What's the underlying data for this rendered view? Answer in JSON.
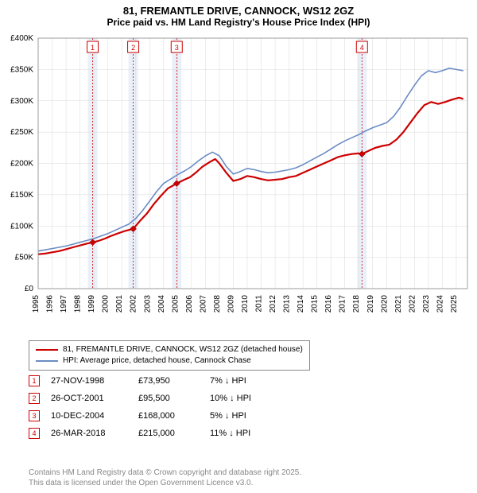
{
  "titles": {
    "line1": "81, FREMANTLE DRIVE, CANNOCK, WS12 2GZ",
    "line2": "Price paid vs. HM Land Registry's House Price Index (HPI)"
  },
  "chart": {
    "type": "line",
    "background_color": "#ffffff",
    "grid_color": "#d8d8d8",
    "grid_line_width": 0.5,
    "axis_color": "#000000",
    "xlim": [
      1995,
      2025.8
    ],
    "ylim": [
      0,
      400000
    ],
    "ytick_step": 50000,
    "ytick_labels": [
      "£0",
      "£50K",
      "£100K",
      "£150K",
      "£200K",
      "£250K",
      "£300K",
      "£350K",
      "£400K"
    ],
    "ytick_fontsize": 10,
    "xtick_years": [
      1995,
      1996,
      1997,
      1998,
      1999,
      2000,
      2001,
      2002,
      2003,
      2004,
      2005,
      2006,
      2007,
      2008,
      2009,
      2010,
      2011,
      2012,
      2013,
      2014,
      2015,
      2016,
      2017,
      2018,
      2019,
      2020,
      2021,
      2022,
      2023,
      2024,
      2025
    ],
    "xtick_fontsize": 10,
    "marker_bands": [
      {
        "x": 1998.91,
        "label": "1",
        "color": "#cc0000"
      },
      {
        "x": 2001.82,
        "label": "2",
        "color": "#cc0000"
      },
      {
        "x": 2004.94,
        "label": "3",
        "color": "#cc0000"
      },
      {
        "x": 2018.23,
        "label": "4",
        "color": "#cc0000"
      }
    ],
    "series": [
      {
        "name": "price_paid",
        "legend": "81, FREMANTLE DRIVE, CANNOCK, WS12 2GZ (detached house)",
        "color": "#cc0000",
        "line_width": 2.2,
        "data": [
          [
            1995.0,
            55000
          ],
          [
            1995.5,
            56000
          ],
          [
            1996.0,
            58000
          ],
          [
            1996.5,
            60000
          ],
          [
            1997.0,
            63000
          ],
          [
            1997.5,
            66000
          ],
          [
            1998.0,
            69000
          ],
          [
            1998.5,
            72000
          ],
          [
            1998.91,
            73950
          ],
          [
            1999.3,
            76000
          ],
          [
            1999.8,
            80000
          ],
          [
            2000.2,
            84000
          ],
          [
            2000.7,
            88000
          ],
          [
            2001.2,
            92000
          ],
          [
            2001.82,
            95500
          ],
          [
            2002.3,
            108000
          ],
          [
            2002.8,
            120000
          ],
          [
            2003.3,
            135000
          ],
          [
            2003.8,
            148000
          ],
          [
            2004.3,
            160000
          ],
          [
            2004.94,
            168000
          ],
          [
            2005.4,
            173000
          ],
          [
            2005.9,
            178000
          ],
          [
            2006.3,
            185000
          ],
          [
            2006.8,
            195000
          ],
          [
            2007.3,
            202000
          ],
          [
            2007.7,
            207000
          ],
          [
            2008.0,
            200000
          ],
          [
            2008.5,
            185000
          ],
          [
            2009.0,
            172000
          ],
          [
            2009.5,
            175000
          ],
          [
            2010.0,
            180000
          ],
          [
            2010.5,
            178000
          ],
          [
            2011.0,
            175000
          ],
          [
            2011.5,
            173000
          ],
          [
            2012.0,
            174000
          ],
          [
            2012.5,
            175000
          ],
          [
            2013.0,
            178000
          ],
          [
            2013.5,
            180000
          ],
          [
            2014.0,
            185000
          ],
          [
            2014.5,
            190000
          ],
          [
            2015.0,
            195000
          ],
          [
            2015.5,
            200000
          ],
          [
            2016.0,
            205000
          ],
          [
            2016.5,
            210000
          ],
          [
            2017.0,
            213000
          ],
          [
            2017.5,
            215000
          ],
          [
            2018.0,
            216000
          ],
          [
            2018.23,
            215000
          ],
          [
            2018.7,
            220000
          ],
          [
            2019.2,
            225000
          ],
          [
            2019.7,
            228000
          ],
          [
            2020.2,
            230000
          ],
          [
            2020.7,
            238000
          ],
          [
            2021.2,
            250000
          ],
          [
            2021.7,
            265000
          ],
          [
            2022.2,
            280000
          ],
          [
            2022.7,
            293000
          ],
          [
            2023.2,
            298000
          ],
          [
            2023.7,
            295000
          ],
          [
            2024.2,
            298000
          ],
          [
            2024.7,
            302000
          ],
          [
            2025.2,
            305000
          ],
          [
            2025.5,
            303000
          ]
        ]
      },
      {
        "name": "hpi",
        "legend": "HPI: Average price, detached house, Cannock Chase",
        "color": "#6b8cc4",
        "line_width": 1.6,
        "data": [
          [
            1995.0,
            60000
          ],
          [
            1995.5,
            62000
          ],
          [
            1996.0,
            64000
          ],
          [
            1996.5,
            66000
          ],
          [
            1997.0,
            68000
          ],
          [
            1997.5,
            71000
          ],
          [
            1998.0,
            74000
          ],
          [
            1998.5,
            77000
          ],
          [
            1999.0,
            80000
          ],
          [
            1999.5,
            84000
          ],
          [
            2000.0,
            88000
          ],
          [
            2000.5,
            93000
          ],
          [
            2001.0,
            98000
          ],
          [
            2001.5,
            103000
          ],
          [
            2002.0,
            112000
          ],
          [
            2002.5,
            125000
          ],
          [
            2003.0,
            140000
          ],
          [
            2003.5,
            155000
          ],
          [
            2004.0,
            168000
          ],
          [
            2004.5,
            175000
          ],
          [
            2005.0,
            182000
          ],
          [
            2005.5,
            188000
          ],
          [
            2006.0,
            195000
          ],
          [
            2006.5,
            204000
          ],
          [
            2007.0,
            212000
          ],
          [
            2007.5,
            218000
          ],
          [
            2008.0,
            212000
          ],
          [
            2008.5,
            195000
          ],
          [
            2009.0,
            183000
          ],
          [
            2009.5,
            187000
          ],
          [
            2010.0,
            192000
          ],
          [
            2010.5,
            190000
          ],
          [
            2011.0,
            187000
          ],
          [
            2011.5,
            185000
          ],
          [
            2012.0,
            186000
          ],
          [
            2012.5,
            188000
          ],
          [
            2013.0,
            190000
          ],
          [
            2013.5,
            193000
          ],
          [
            2014.0,
            198000
          ],
          [
            2014.5,
            204000
          ],
          [
            2015.0,
            210000
          ],
          [
            2015.5,
            216000
          ],
          [
            2016.0,
            223000
          ],
          [
            2016.5,
            230000
          ],
          [
            2017.0,
            236000
          ],
          [
            2017.5,
            241000
          ],
          [
            2018.0,
            246000
          ],
          [
            2018.5,
            252000
          ],
          [
            2019.0,
            257000
          ],
          [
            2019.5,
            261000
          ],
          [
            2020.0,
            265000
          ],
          [
            2020.5,
            275000
          ],
          [
            2021.0,
            290000
          ],
          [
            2021.5,
            308000
          ],
          [
            2022.0,
            325000
          ],
          [
            2022.5,
            340000
          ],
          [
            2023.0,
            348000
          ],
          [
            2023.5,
            345000
          ],
          [
            2024.0,
            348000
          ],
          [
            2024.5,
            352000
          ],
          [
            2025.0,
            350000
          ],
          [
            2025.5,
            348000
          ]
        ]
      }
    ],
    "sale_markers": [
      {
        "x": 1998.91,
        "y": 73950,
        "color": "#cc0000"
      },
      {
        "x": 2001.82,
        "y": 95500,
        "color": "#cc0000"
      },
      {
        "x": 2004.94,
        "y": 168000,
        "color": "#cc0000"
      },
      {
        "x": 2018.23,
        "y": 215000,
        "color": "#cc0000"
      }
    ]
  },
  "legend": {
    "items": [
      {
        "color": "#cc0000",
        "width": 2.2,
        "text": "81, FREMANTLE DRIVE, CANNOCK, WS12 2GZ (detached house)"
      },
      {
        "color": "#6b8cc4",
        "width": 1.6,
        "text": "HPI: Average price, detached house, Cannock Chase"
      }
    ]
  },
  "sales": [
    {
      "marker": "1",
      "marker_color": "#cc0000",
      "date": "27-NOV-1998",
      "price": "£73,950",
      "diff": "7% ↓ HPI"
    },
    {
      "marker": "2",
      "marker_color": "#cc0000",
      "date": "26-OCT-2001",
      "price": "£95,500",
      "diff": "10% ↓ HPI"
    },
    {
      "marker": "3",
      "marker_color": "#cc0000",
      "date": "10-DEC-2004",
      "price": "£168,000",
      "diff": "5% ↓ HPI"
    },
    {
      "marker": "4",
      "marker_color": "#cc0000",
      "date": "26-MAR-2018",
      "price": "£215,000",
      "diff": "11% ↓ HPI"
    }
  ],
  "footer": {
    "line1": "Contains HM Land Registry data © Crown copyright and database right 2025.",
    "line2": "This data is licensed under the Open Government Licence v3.0."
  }
}
